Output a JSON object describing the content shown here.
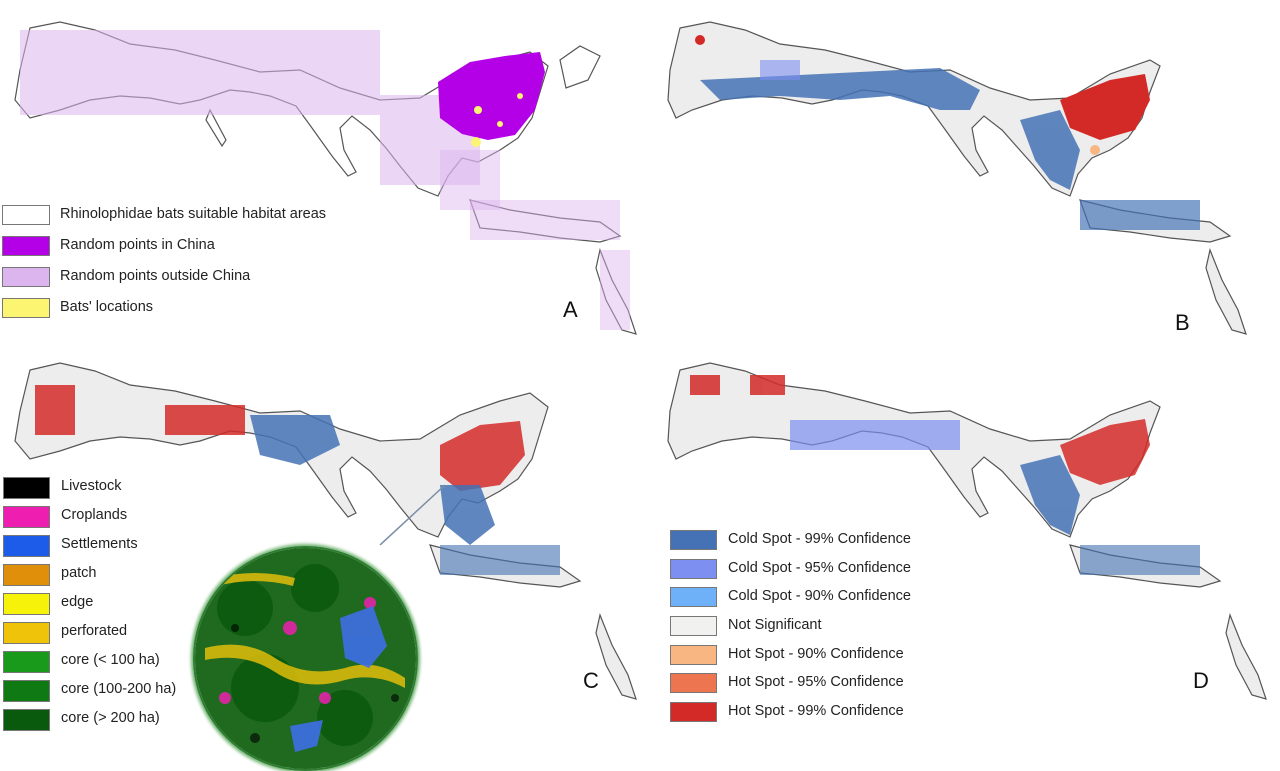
{
  "figure": {
    "panels": [
      {
        "letter": "A"
      },
      {
        "letter": "B"
      },
      {
        "letter": "C"
      },
      {
        "letter": "D"
      }
    ]
  },
  "legend_a": {
    "items": [
      {
        "label": "Rhinolophidae bats suitable habitat areas",
        "color": "#ffffff"
      },
      {
        "label": "Random points in China",
        "color": "#b400e6"
      },
      {
        "label": "Random points outside China",
        "color": "#dcb4ee"
      },
      {
        "label": "Bats' locations",
        "color": "#fbf572"
      }
    ]
  },
  "legend_c": {
    "items": [
      {
        "label": "Livestock",
        "color": "#000000"
      },
      {
        "label": "Croplands",
        "color": "#ee1fb0"
      },
      {
        "label": "Settlements",
        "color": "#1c5ce8"
      },
      {
        "label": "patch",
        "color": "#e08f0a"
      },
      {
        "label": "edge",
        "color": "#f7f20a"
      },
      {
        "label": "perforated",
        "color": "#eec30a"
      },
      {
        "label": "core (< 100 ha)",
        "color": "#1a9a1a"
      },
      {
        "label": "core (100-200 ha)",
        "color": "#0f7a14"
      },
      {
        "label": "core (> 200 ha)",
        "color": "#0a5a0e"
      }
    ]
  },
  "legend_d": {
    "items": [
      {
        "label": "Cold Spot - 99% Confidence",
        "color": "#4472b4"
      },
      {
        "label": "Cold Spot - 95% Confidence",
        "color": "#7d8ff0"
      },
      {
        "label": "Cold Spot - 90% Confidence",
        "color": "#6fb1f8"
      },
      {
        "label": "Not Significant",
        "color": "#f1f1ef"
      },
      {
        "label": "Hot Spot - 90% Confidence",
        "color": "#f7b682"
      },
      {
        "label": "Hot Spot - 95% Confidence",
        "color": "#ed7550"
      },
      {
        "label": "Hot Spot - 99% Confidence",
        "color": "#d32a28"
      }
    ]
  }
}
